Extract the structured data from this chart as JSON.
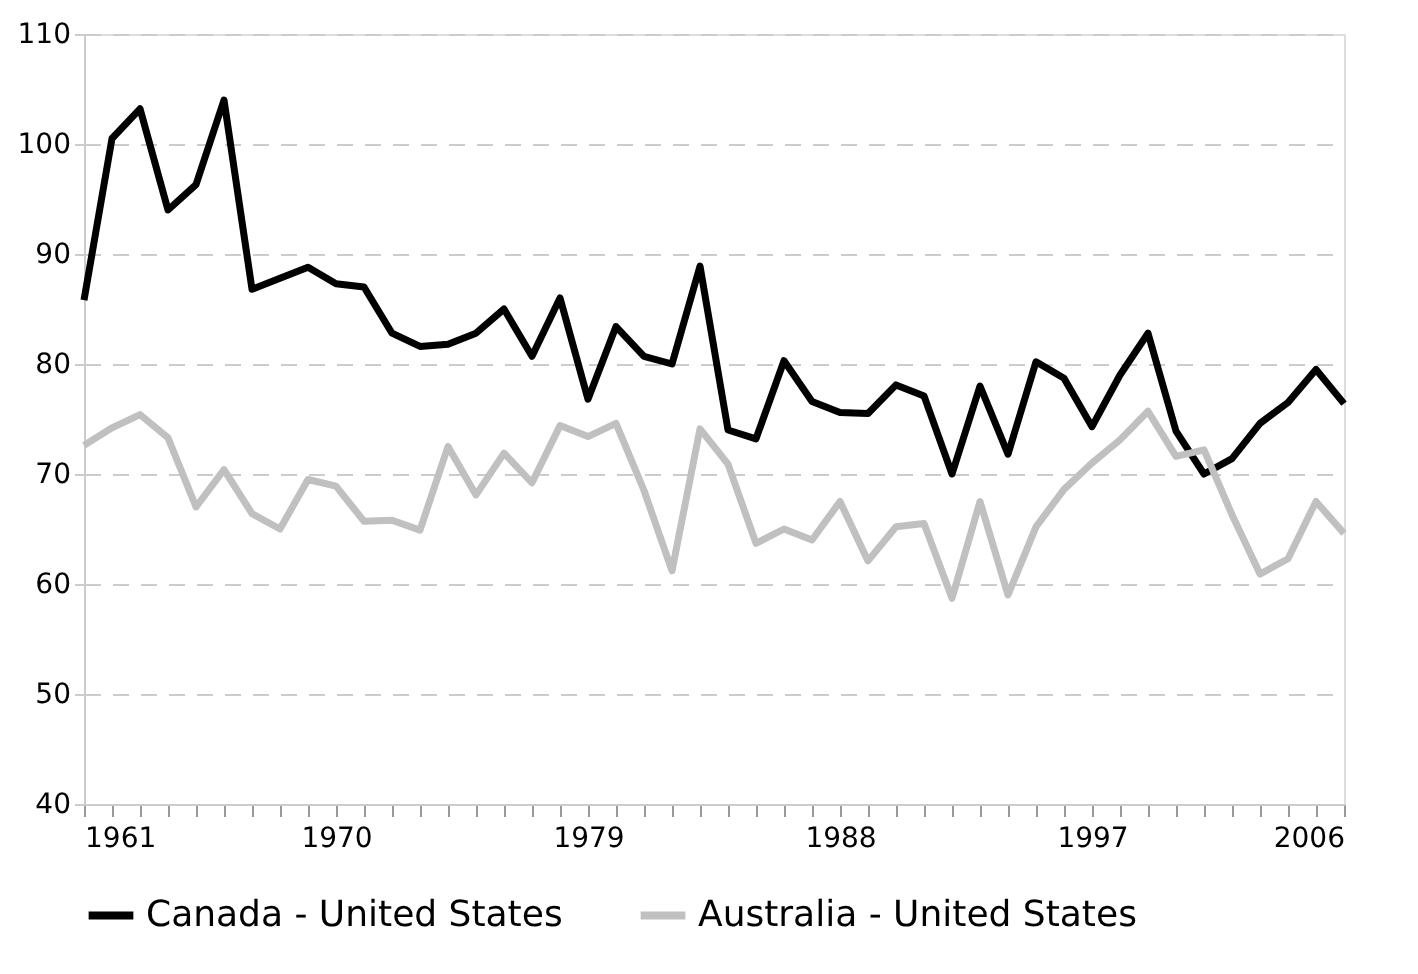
{
  "chart_data": {
    "type": "line",
    "x": [
      1961,
      1962,
      1963,
      1964,
      1965,
      1966,
      1967,
      1968,
      1969,
      1970,
      1971,
      1972,
      1973,
      1974,
      1975,
      1976,
      1977,
      1978,
      1979,
      1980,
      1981,
      1982,
      1983,
      1984,
      1985,
      1986,
      1987,
      1988,
      1989,
      1990,
      1991,
      1992,
      1993,
      1994,
      1995,
      1996,
      1997,
      1998,
      1999,
      2000,
      2001,
      2002,
      2003,
      2004,
      2005,
      2006
    ],
    "series": [
      {
        "name": "Canada - United States",
        "color": "#000000",
        "values": [
          85.8,
          100.5,
          103.2,
          94,
          96.3,
          104,
          86.8,
          87.8,
          88.8,
          87.3,
          87,
          82.8,
          81.6,
          81.8,
          82.8,
          85,
          80.7,
          86,
          76.8,
          83.4,
          80.7,
          80,
          88.9,
          74,
          73.2,
          80.3,
          76.6,
          75.6,
          75.5,
          78.1,
          77.1,
          70,
          78,
          71.8,
          80.2,
          78.7,
          74.3,
          79,
          82.8,
          73.9,
          70,
          71.4,
          74.6,
          76.5,
          79.5,
          76.4
        ]
      },
      {
        "name": "Australia - United States",
        "color": "#c0c0c0",
        "values": [
          72.6,
          74.2,
          75.4,
          73.3,
          67,
          70.4,
          66.4,
          65,
          69.5,
          68.9,
          65.7,
          65.8,
          64.9,
          72.5,
          68.1,
          71.9,
          69.2,
          74.4,
          73.4,
          74.6,
          68.5,
          61.2,
          74.1,
          70.9,
          63.7,
          65,
          64,
          67.5,
          62.1,
          65.2,
          65.5,
          58.7,
          67.5,
          59,
          65.2,
          68.6,
          71,
          73.1,
          75.7,
          71.6,
          72.2,
          66.3,
          60.9,
          62.3,
          67.5,
          64.6
        ]
      }
    ],
    "xlim": [
      1961,
      2006
    ],
    "xticks": [
      1961,
      {
        "value": 1962,
        "label": null
      },
      {
        "value": 1963,
        "label": null
      },
      {
        "value": 1964,
        "label": null
      },
      {
        "value": 1965,
        "label": null
      },
      {
        "value": 1966,
        "label": null
      },
      {
        "value": 1967,
        "label": null
      },
      {
        "value": 1968,
        "label": null
      },
      {
        "value": 1969,
        "label": null
      },
      1970,
      {
        "value": 1971,
        "label": null
      },
      {
        "value": 1972,
        "label": null
      },
      {
        "value": 1973,
        "label": null
      },
      {
        "value": 1974,
        "label": null
      },
      {
        "value": 1975,
        "label": null
      },
      {
        "value": 1976,
        "label": null
      },
      {
        "value": 1977,
        "label": null
      },
      {
        "value": 1978,
        "label": null
      },
      1979,
      {
        "value": 1980,
        "label": null
      },
      {
        "value": 1981,
        "label": null
      },
      {
        "value": 1982,
        "label": null
      },
      {
        "value": 1983,
        "label": null
      },
      {
        "value": 1984,
        "label": null
      },
      {
        "value": 1985,
        "label": null
      },
      {
        "value": 1986,
        "label": null
      },
      {
        "value": 1987,
        "label": null
      },
      1988,
      {
        "value": 1989,
        "label": null
      },
      {
        "value": 1990,
        "label": null
      },
      {
        "value": 1991,
        "label": null
      },
      {
        "value": 1992,
        "label": null
      },
      {
        "value": 1993,
        "label": null
      },
      {
        "value": 1994,
        "label": null
      },
      {
        "value": 1995,
        "label": null
      },
      {
        "value": 1996,
        "label": null
      },
      1997,
      {
        "value": 1998,
        "label": null
      },
      {
        "value": 1999,
        "label": null
      },
      {
        "value": 2000,
        "label": null
      },
      {
        "value": 2001,
        "label": null
      },
      {
        "value": 2002,
        "label": null
      },
      {
        "value": 2003,
        "label": null
      },
      {
        "value": 2004,
        "label": null
      },
      {
        "value": 2005,
        "label": null
      },
      2006
    ],
    "ylim": [
      40,
      110
    ],
    "yticks": [
      40,
      50,
      60,
      70,
      80,
      90,
      100,
      110
    ],
    "grid": "y",
    "line_style": "solid",
    "marker": "none",
    "legend": "bottom"
  }
}
